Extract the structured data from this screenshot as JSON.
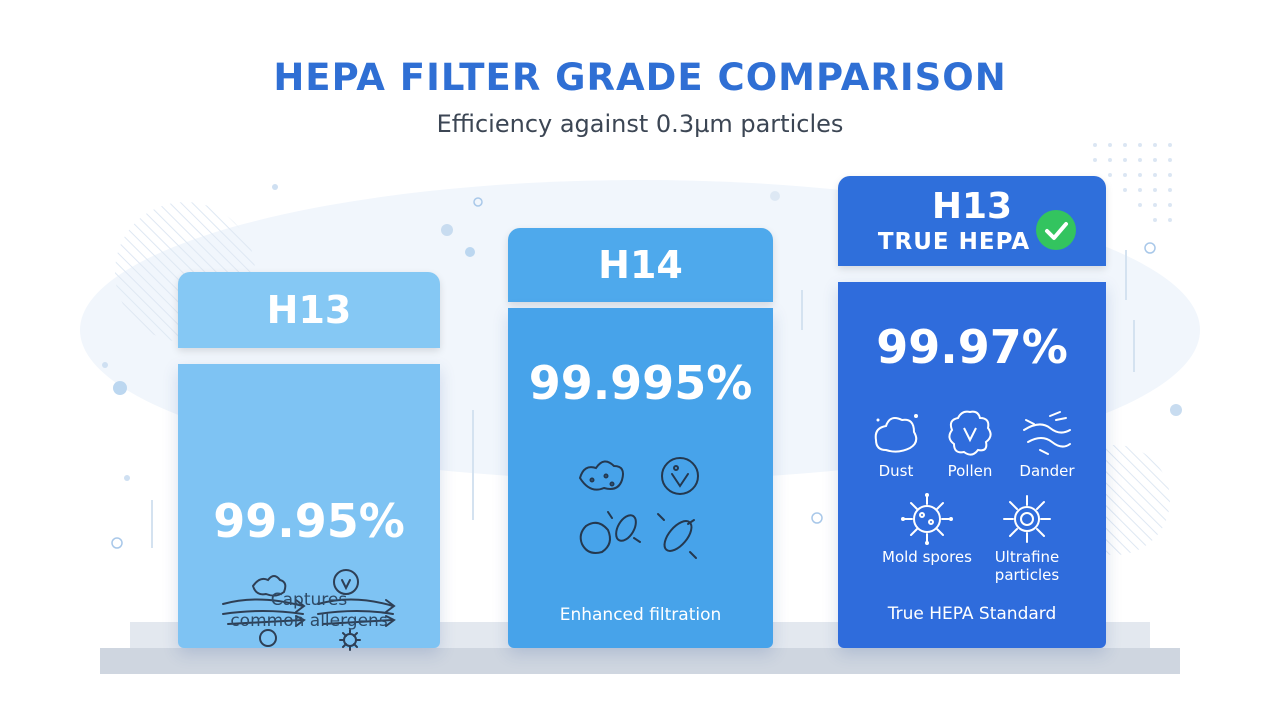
{
  "title": "HEPA FILTER GRADE COMPARISON",
  "subtitle": "Efficiency against 0.3µm particles",
  "cards": [
    {
      "grade": "H13",
      "efficiency": "99.95%",
      "caption_line1": "Captures",
      "caption_line2": "common allergens",
      "color": "#7ec3f3"
    },
    {
      "grade": "H14",
      "efficiency": "99.995%",
      "caption": "Enhanced filtration",
      "color": "#47a3ea"
    },
    {
      "grade": "H13",
      "badge": "TRUE HEPA",
      "efficiency": "99.97%",
      "caption": "True HEPA Standard",
      "color": "#2f6cdc",
      "particles": [
        {
          "label": "Dust",
          "icon": "dust-icon"
        },
        {
          "label": "Pollen",
          "icon": "pollen-icon"
        },
        {
          "label": "Dander",
          "icon": "dander-icon"
        },
        {
          "label": "Mold spores",
          "icon": "mold-spore-icon"
        },
        {
          "label_line1": "Ultrafine",
          "label_line2": "particles",
          "icon": "ultrafine-particle-icon"
        }
      ]
    }
  ]
}
